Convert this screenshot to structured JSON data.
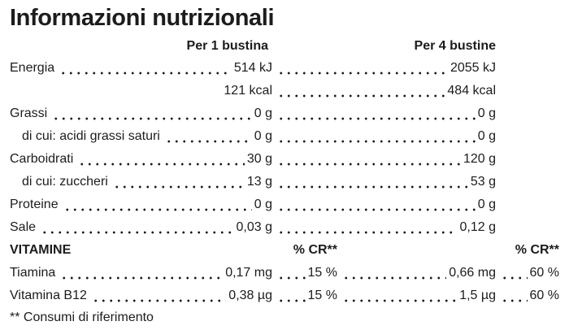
{
  "title": "Informazioni nutrizionali",
  "columns": {
    "per1": "Per 1 bustina",
    "per4": "Per 4 bustine"
  },
  "rows": [
    {
      "label": "Energia",
      "v1": "514 kJ",
      "v2": "2055 kJ"
    },
    {
      "label": "",
      "v1": "121 kcal",
      "v2": "484 kcal"
    },
    {
      "label": "Grassi",
      "v1": "0 g",
      "v2": "0 g"
    },
    {
      "label": "di cui: acidi grassi saturi",
      "v1": "0 g",
      "v2": "0 g"
    },
    {
      "label": "Carboidrati",
      "v1": "30 g",
      "v2": "120 g"
    },
    {
      "label": "di cui: zuccheri",
      "v1": "13 g",
      "v2": "53 g"
    },
    {
      "label": "Proteine",
      "v1": "0 g",
      "v2": "0 g"
    },
    {
      "label": "Sale",
      "v1": "0,03 g",
      "v2": "0,12 g"
    }
  ],
  "vitamins": {
    "section_label": "VITAMINE",
    "cr_header": "% CR**",
    "rows": [
      {
        "label": "Tiamina",
        "v1": "0,17 mg",
        "cr1": "15 %",
        "v2": "0,66 mg",
        "cr2": "60 %"
      },
      {
        "label": "Vitamina B12",
        "v1": "0,38 µg",
        "cr1": "15 %",
        "v2": "1,5 µg",
        "cr2": "60 %"
      }
    ]
  },
  "footnote": "** Consumi di riferimento",
  "colors": {
    "text": "#1c1c1c",
    "background": "#ffffff"
  }
}
